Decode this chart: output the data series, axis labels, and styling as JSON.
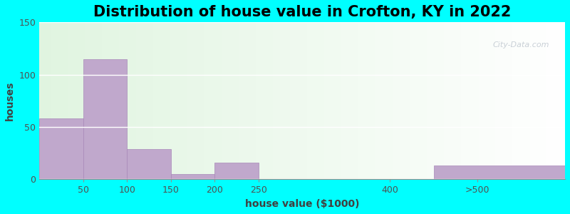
{
  "title": "Distribution of house value in Crofton, KY in 2022",
  "xlabel": "house value ($1000)",
  "ylabel": "houses",
  "bar_color": "#c0a8cc",
  "bar_edgecolor": "#a888b8",
  "background_outer": "#00ffff",
  "ylim": [
    0,
    150
  ],
  "yticks": [
    0,
    50,
    100,
    150
  ],
  "xlim": [
    0,
    600
  ],
  "xtick_positions": [
    50,
    100,
    150,
    200,
    250,
    400,
    500
  ],
  "xtick_labels": [
    "50",
    "100",
    "150",
    "200",
    "250",
    "400",
    ">500"
  ],
  "bar_lefts": [
    0,
    50,
    100,
    150,
    200,
    450
  ],
  "bar_widths": [
    50,
    50,
    50,
    50,
    50,
    150
  ],
  "bar_heights": [
    58,
    115,
    29,
    5,
    16,
    13
  ],
  "title_fontsize": 15,
  "axis_label_fontsize": 10,
  "tick_fontsize": 9,
  "watermark_text": "City-Data.com"
}
